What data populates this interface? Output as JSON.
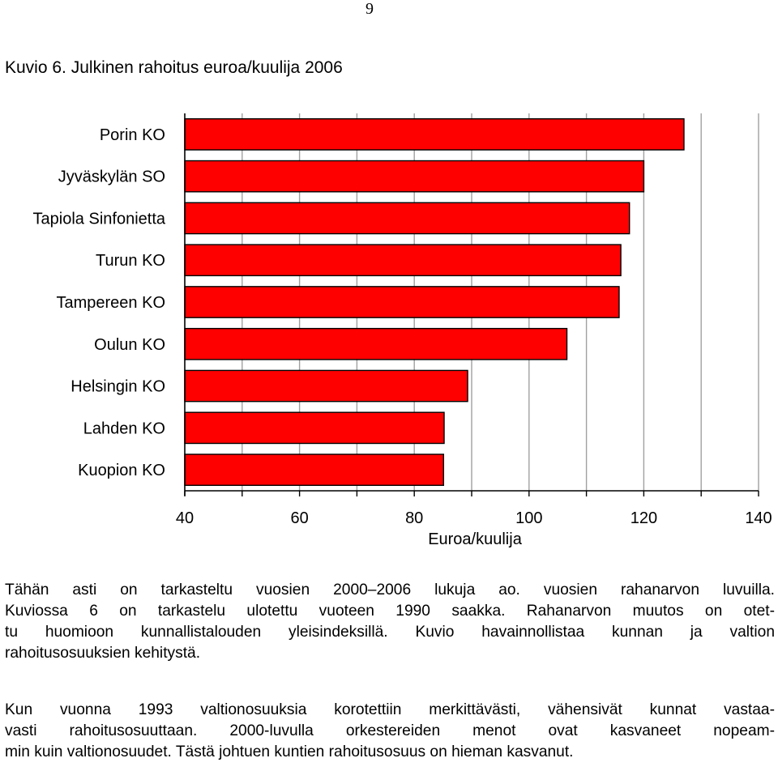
{
  "page_number": "9",
  "figure": {
    "label": "Kuvio 6.",
    "title": "Julkinen rahoitus euroa/kuulija 2006"
  },
  "chart_data": {
    "type": "bar",
    "orientation": "horizontal",
    "title": "Kuvio 6. Julkinen rahoitus euroa/kuulija 2006",
    "xlabel": "Euroa/kuulija",
    "ylabel": "",
    "xlim": [
      40,
      140
    ],
    "xticks": [
      40,
      60,
      80,
      100,
      120,
      140
    ],
    "minor_ticks": [
      50,
      70,
      90,
      110,
      130
    ],
    "grid": "vertical",
    "bar_color": "#ff0000",
    "bar_edge_color": "#000000",
    "categories": [
      "Porin KO",
      "Jyväskylän SO",
      "Tapiola Sinfonietta",
      "Turun KO",
      "Tampereen KO",
      "Oulun KO",
      "Helsingin KO",
      "Lahden KO",
      "Kuopion KO"
    ],
    "values": [
      127,
      120,
      117.5,
      116,
      115.7,
      106.6,
      89.3,
      85.2,
      85.1
    ]
  },
  "paragraphs": [
    {
      "lines": [
        "Tähän asti on tarkasteltu vuosien 2000–2006 lukuja ao. vuosien rahanarvon luvuilla.",
        "Kuviossa 6 on tarkastelu ulotettu vuoteen 1990 saakka. Rahanarvon muutos on otet-",
        "tu huomioon kunnallistalouden yleisindeksillä. Kuvio havainnollistaa kunnan ja valtion",
        "rahoitusosuuksien kehitystä."
      ]
    },
    {
      "lines": [
        "Kun vuonna 1993 valtionosuuksia korotettiin merkittävästi, vähensivät kunnat vastaa-",
        "vasti rahoitusosuuttaan. 2000-luvulla orkestereiden menot ovat kasvaneet nopeam-",
        "min kuin valtionosuudet. Tästä johtuen kuntien rahoitusosuus on hieman kasvanut."
      ]
    }
  ]
}
